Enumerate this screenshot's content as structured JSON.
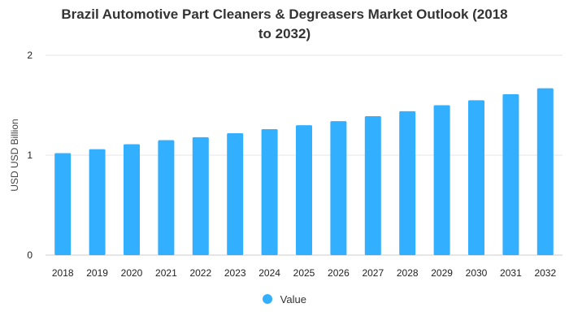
{
  "chart_data": {
    "type": "bar",
    "title_lines": [
      "Brazil Automotive Part Cleaners & Degreasers Market Outlook (2018",
      "to 2032)"
    ],
    "ylabel": "USD USD Billion",
    "xlabel": "",
    "categories": [
      "2018",
      "2019",
      "2020",
      "2021",
      "2022",
      "2023",
      "2024",
      "2025",
      "2026",
      "2027",
      "2028",
      "2029",
      "2030",
      "2031",
      "2032"
    ],
    "series": [
      {
        "name": "Value",
        "values": [
          1.02,
          1.06,
          1.11,
          1.15,
          1.18,
          1.22,
          1.26,
          1.3,
          1.34,
          1.39,
          1.44,
          1.5,
          1.55,
          1.61,
          1.67
        ]
      }
    ],
    "ylim": [
      0,
      2
    ],
    "yticks": [
      0,
      1,
      2
    ],
    "grid": true,
    "legend_position": "bottom",
    "bar_color": "#33afff"
  }
}
